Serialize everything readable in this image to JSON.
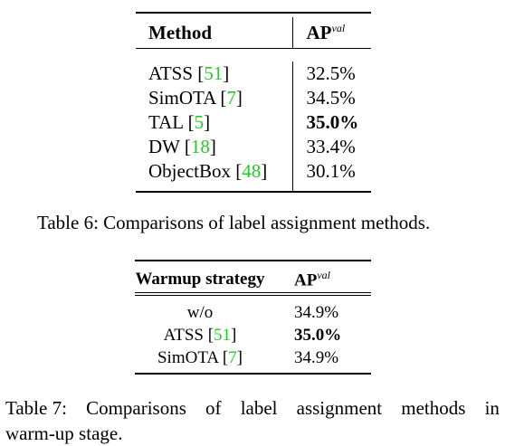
{
  "table6": {
    "header": {
      "method": "Method",
      "ap": "AP",
      "ap_sup": "val"
    },
    "rows": [
      {
        "method": "ATSS",
        "cite": "51",
        "ap": "32.5%",
        "bold": false
      },
      {
        "method": "SimOTA",
        "cite": "7",
        "ap": "34.5%",
        "bold": false
      },
      {
        "method": "TAL",
        "cite": "5",
        "ap": "35.0%",
        "bold": true
      },
      {
        "method": "DW",
        "cite": "18",
        "ap": "33.4%",
        "bold": false
      },
      {
        "method": "ObjectBox",
        "cite": "48",
        "ap": "30.1%",
        "bold": false
      }
    ],
    "caption": "Table 6: Comparisons of label assignment methods."
  },
  "table7": {
    "header": {
      "strategy": "Warmup strategy",
      "ap": "AP",
      "ap_sup": "val"
    },
    "rows": [
      {
        "strategy": "w/o",
        "cite": "",
        "ap": "34.9%",
        "bold": false
      },
      {
        "strategy": "ATSS",
        "cite": "51",
        "ap": "35.0%",
        "bold": true
      },
      {
        "strategy": "SimOTA",
        "cite": "7",
        "ap": "34.9%",
        "bold": false
      }
    ],
    "caption_words": [
      "Table 7:",
      "Comparisons",
      "of",
      "label",
      "assignment",
      "methods",
      "in"
    ],
    "caption_line2": "warm-up stage."
  },
  "colors": {
    "citation": "#22cc22",
    "text": "#000000",
    "background": "#ffffff"
  }
}
